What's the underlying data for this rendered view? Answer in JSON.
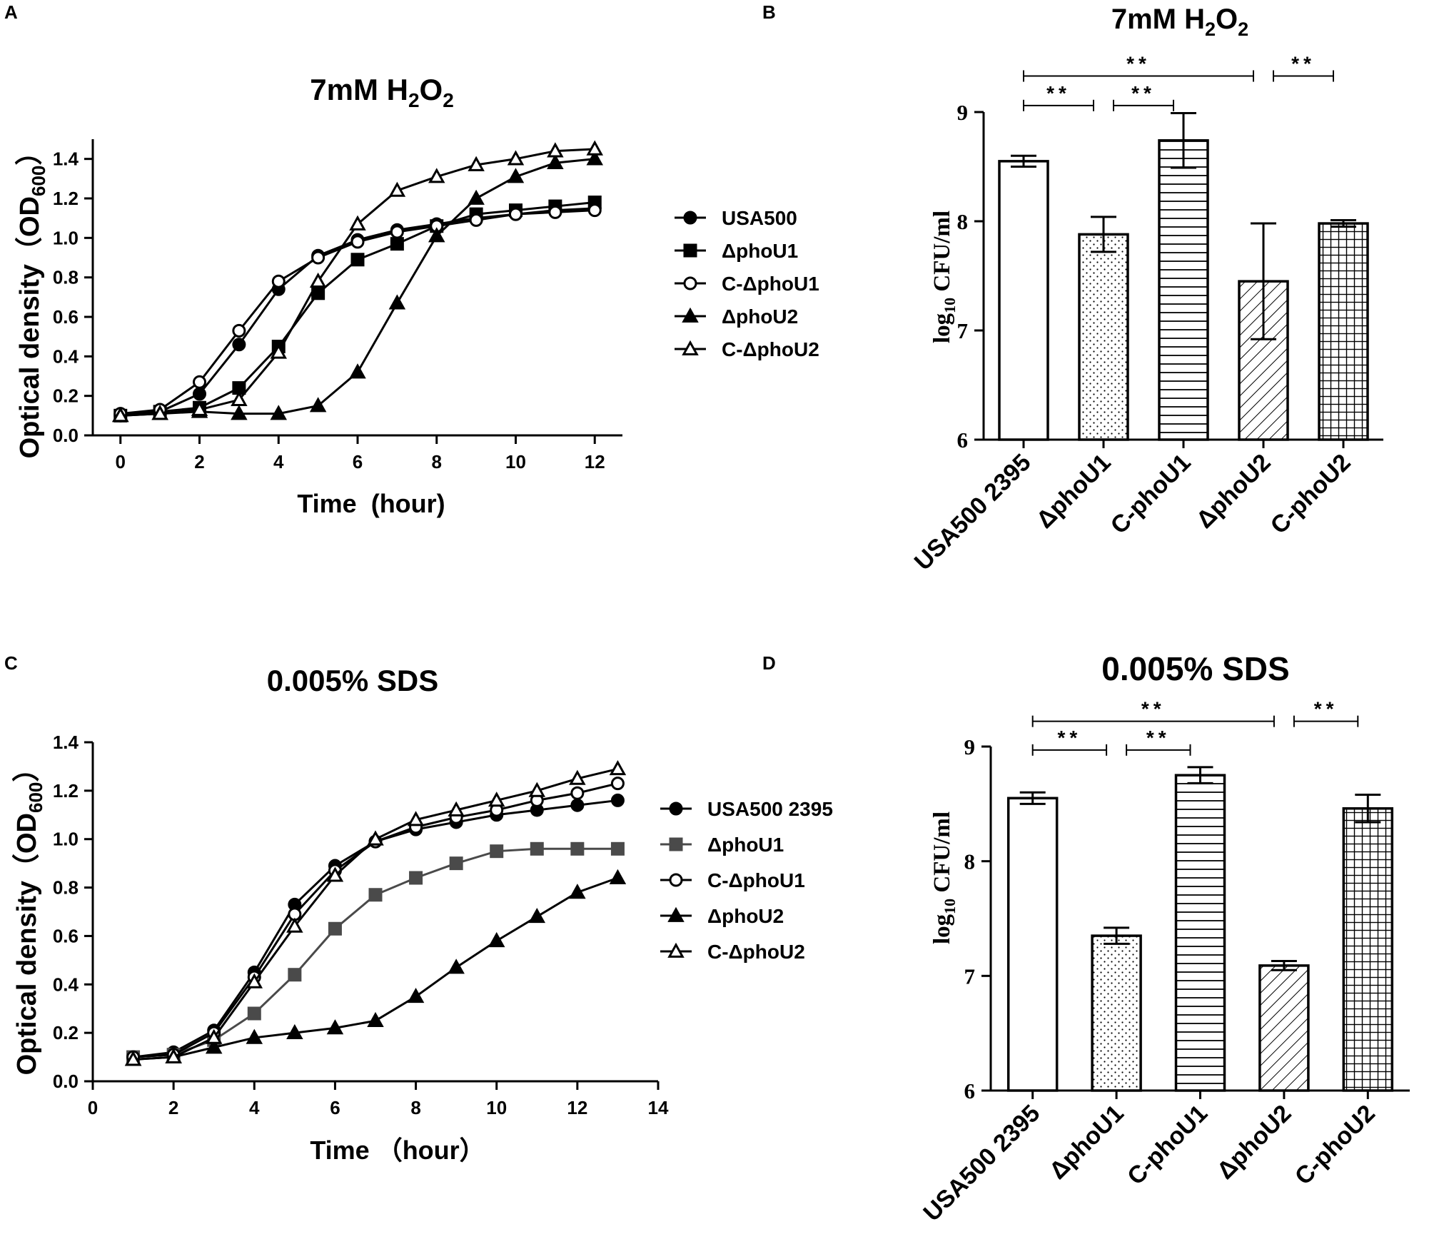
{
  "chart_data": [
    {
      "panel": "A",
      "type": "line",
      "title_main": "7mM H",
      "title_sub1": "2",
      "title_mid": "O",
      "title_sub2": "2",
      "ylabel_main": "Optical density（OD",
      "ylabel_sub": "600",
      "ylabel_end": "）",
      "xlabel": "Time  (hour)",
      "xlim": [
        -0.7,
        12.7
      ],
      "ylim": [
        0,
        1.5
      ],
      "xticks": [
        0,
        2,
        4,
        6,
        8,
        10,
        12
      ],
      "yticks": [
        0.0,
        0.2,
        0.4,
        0.6,
        0.8,
        1.0,
        1.2,
        1.4
      ],
      "legend_position": "right",
      "series": [
        {
          "name": "USA500",
          "marker": "circle-filled",
          "x": [
            0,
            1,
            2,
            3,
            4,
            5,
            6,
            7,
            8,
            9,
            10,
            11,
            12
          ],
          "values": [
            0.1,
            0.12,
            0.21,
            0.46,
            0.74,
            0.91,
            0.99,
            1.04,
            1.07,
            1.1,
            1.12,
            1.14,
            1.15
          ]
        },
        {
          "name": "ΔphoU1",
          "marker": "square-filled",
          "x": [
            0,
            1,
            2,
            3,
            4,
            5,
            6,
            7,
            8,
            9,
            10,
            11,
            12
          ],
          "values": [
            0.1,
            0.12,
            0.14,
            0.24,
            0.45,
            0.72,
            0.89,
            0.97,
            1.06,
            1.12,
            1.14,
            1.16,
            1.18
          ]
        },
        {
          "name": "C-ΔphoU1",
          "marker": "circle-open",
          "x": [
            0,
            1,
            2,
            3,
            4,
            5,
            6,
            7,
            8,
            9,
            10,
            11,
            12
          ],
          "values": [
            0.11,
            0.13,
            0.27,
            0.53,
            0.78,
            0.9,
            0.98,
            1.03,
            1.06,
            1.09,
            1.12,
            1.13,
            1.14
          ]
        },
        {
          "name": "ΔphoU2",
          "marker": "triangle-filled",
          "x": [
            0,
            1,
            2,
            3,
            4,
            5,
            6,
            7,
            8,
            9,
            10,
            11,
            12
          ],
          "values": [
            0.1,
            0.11,
            0.12,
            0.11,
            0.11,
            0.15,
            0.32,
            0.67,
            1.01,
            1.2,
            1.31,
            1.38,
            1.4
          ]
        },
        {
          "name": "C-ΔphoU2",
          "marker": "triangle-open",
          "x": [
            0,
            1,
            2,
            3,
            4,
            5,
            6,
            7,
            8,
            9,
            10,
            11,
            12
          ],
          "values": [
            0.1,
            0.11,
            0.13,
            0.18,
            0.42,
            0.78,
            1.07,
            1.24,
            1.31,
            1.37,
            1.4,
            1.44,
            1.45
          ]
        }
      ]
    },
    {
      "panel": "B",
      "type": "bar",
      "title_main": "7mM H",
      "title_sub1": "2",
      "title_mid": "O",
      "title_sub2": "2",
      "ylabel_main": "log",
      "ylabel_sub": "10",
      "ylabel_end": " CFU/ml",
      "ylim": [
        6,
        9.3
      ],
      "yticks": [
        6,
        7,
        8,
        9
      ],
      "categories": [
        "USA500 2395",
        "ΔphoU1",
        "C-phoU1",
        "ΔphoU2",
        "C-phoU2"
      ],
      "patterns": [
        "none",
        "dots",
        "horizontal",
        "diagonal",
        "grid"
      ],
      "values": [
        8.55,
        7.88,
        8.74,
        7.45,
        7.98
      ],
      "errors": [
        0.05,
        0.16,
        0.25,
        0.53,
        0.03
      ],
      "significance": [
        {
          "from": 0,
          "to": 3,
          "label": "**",
          "level": 9.33
        },
        {
          "from": 3,
          "to": 4,
          "label": "**",
          "level": 9.33
        },
        {
          "from": 0,
          "to": 1,
          "label": "**",
          "level": 9.06
        },
        {
          "from": 1,
          "to": 2,
          "label": "**",
          "level": 9.06
        }
      ]
    },
    {
      "panel": "C",
      "type": "line",
      "title": "0.005% SDS",
      "ylabel_main": "Optical density（OD",
      "ylabel_sub": "600",
      "ylabel_end": "）",
      "xlabel": "Time （hour）",
      "xlim": [
        0,
        14
      ],
      "ylim": [
        0,
        1.4
      ],
      "xticks": [
        0,
        2,
        4,
        6,
        8,
        10,
        12,
        14
      ],
      "yticks": [
        0.0,
        0.2,
        0.4,
        0.6,
        0.8,
        1.0,
        1.2,
        1.4
      ],
      "legend_position": "right",
      "series": [
        {
          "name": "USA500 2395",
          "marker": "circle-filled",
          "color": "#000000",
          "x": [
            1,
            2,
            3,
            4,
            5,
            6,
            7,
            8,
            9,
            10,
            11,
            12,
            13
          ],
          "values": [
            0.1,
            0.12,
            0.21,
            0.45,
            0.73,
            0.89,
            0.99,
            1.04,
            1.07,
            1.1,
            1.12,
            1.14,
            1.16
          ]
        },
        {
          "name": "ΔphoU1",
          "marker": "square-filled",
          "color": "#4a4a4a",
          "x": [
            1,
            2,
            3,
            4,
            5,
            6,
            7,
            8,
            9,
            10,
            11,
            12,
            13
          ],
          "values": [
            0.1,
            0.11,
            0.17,
            0.28,
            0.44,
            0.63,
            0.77,
            0.84,
            0.9,
            0.95,
            0.96,
            0.96,
            0.96
          ]
        },
        {
          "name": "C-ΔphoU1",
          "marker": "circle-open",
          "color": "#000000",
          "x": [
            1,
            2,
            3,
            4,
            5,
            6,
            7,
            8,
            9,
            10,
            11,
            12,
            13
          ],
          "values": [
            0.1,
            0.11,
            0.2,
            0.43,
            0.69,
            0.87,
            0.99,
            1.05,
            1.09,
            1.12,
            1.16,
            1.19,
            1.23
          ]
        },
        {
          "name": "ΔphoU2",
          "marker": "triangle-filled",
          "color": "#000000",
          "x": [
            1,
            2,
            3,
            4,
            5,
            6,
            7,
            8,
            9,
            10,
            11,
            12,
            13
          ],
          "values": [
            0.09,
            0.1,
            0.14,
            0.18,
            0.2,
            0.22,
            0.25,
            0.35,
            0.47,
            0.58,
            0.68,
            0.78,
            0.84
          ]
        },
        {
          "name": "C-ΔphoU2",
          "marker": "triangle-open",
          "color": "#000000",
          "x": [
            1,
            2,
            3,
            4,
            5,
            6,
            7,
            8,
            9,
            10,
            11,
            12,
            13
          ],
          "values": [
            0.09,
            0.1,
            0.18,
            0.41,
            0.64,
            0.85,
            1.0,
            1.08,
            1.12,
            1.16,
            1.2,
            1.25,
            1.29
          ]
        }
      ]
    },
    {
      "panel": "D",
      "type": "bar",
      "title": "0.005% SDS",
      "ylabel_main": "log",
      "ylabel_sub": "10",
      "ylabel_end": " CFU/ml",
      "ylim": [
        6,
        9.3
      ],
      "yticks": [
        6,
        7,
        8,
        9
      ],
      "categories": [
        "USA500 2395",
        "ΔphoU1",
        "C-phoU1",
        "ΔphoU2",
        "C-phoU2"
      ],
      "patterns": [
        "none",
        "dots",
        "horizontal",
        "diagonal",
        "grid"
      ],
      "values": [
        8.55,
        7.35,
        8.75,
        7.09,
        8.46
      ],
      "errors": [
        0.05,
        0.07,
        0.07,
        0.04,
        0.12
      ],
      "significance": [
        {
          "from": 0,
          "to": 3,
          "label": "**",
          "level": 9.22
        },
        {
          "from": 3,
          "to": 4,
          "label": "**",
          "level": 9.22
        },
        {
          "from": 0,
          "to": 1,
          "label": "**",
          "level": 8.97
        },
        {
          "from": 1,
          "to": 2,
          "label": "**",
          "level": 8.97
        }
      ]
    }
  ]
}
